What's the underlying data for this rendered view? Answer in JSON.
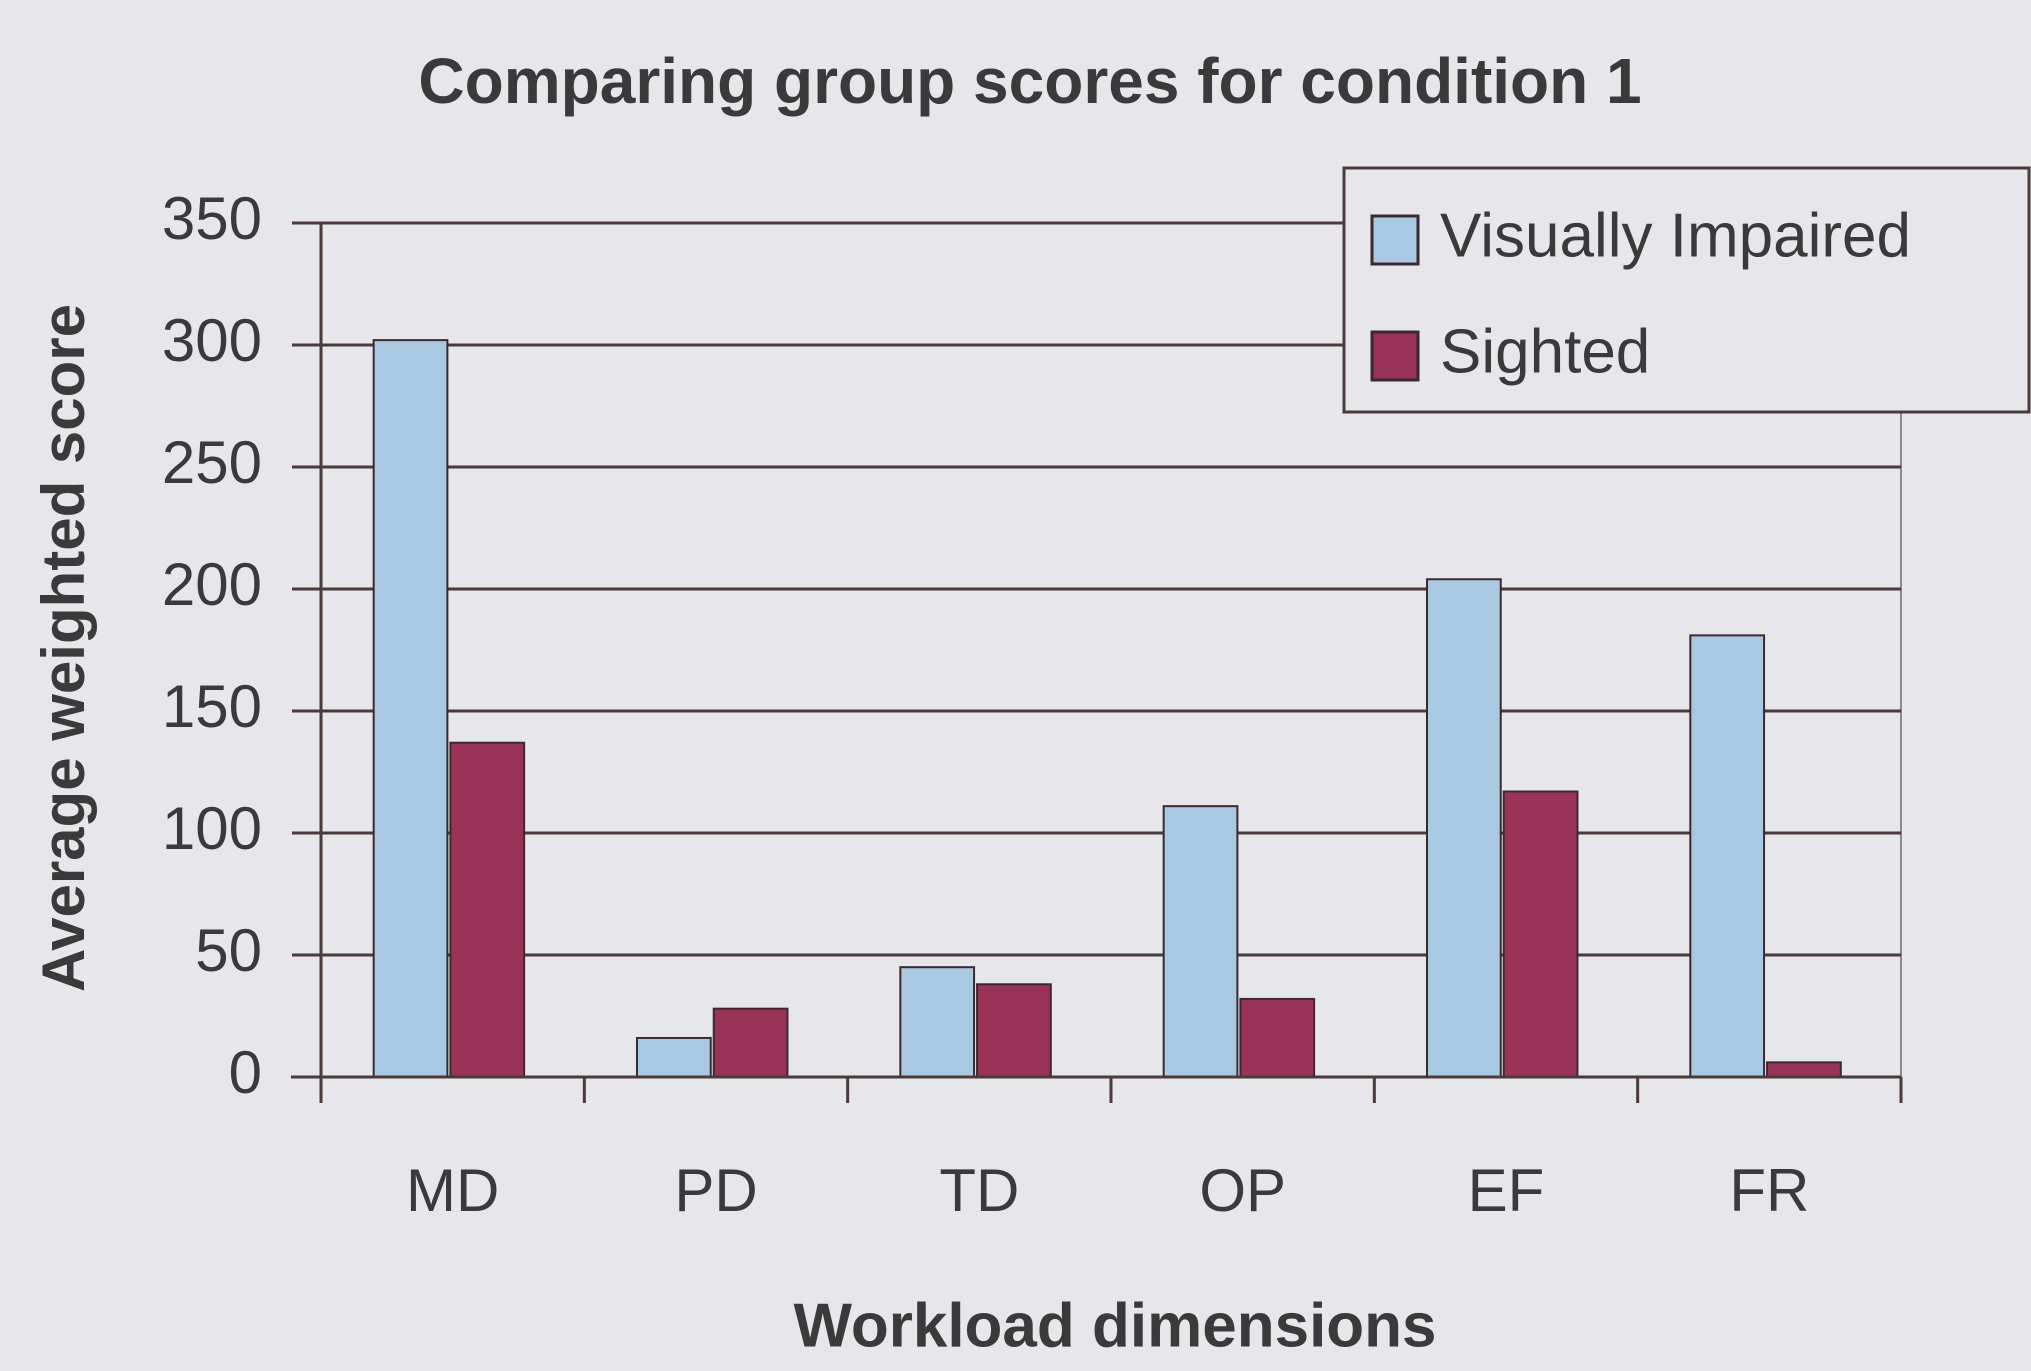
{
  "chart_data": {
    "type": "bar",
    "title": "Comparing group scores for condition 1",
    "x_label": "Workload dimensions",
    "y_label": "Average weighted score",
    "categories": [
      "MD",
      "PD",
      "TD",
      "OP",
      "EF",
      "FR"
    ],
    "series": [
      {
        "name": "Visually Impaired",
        "color": "#a9c9e2",
        "values": [
          302,
          16,
          45,
          111,
          204,
          181
        ]
      },
      {
        "name": "Sighted",
        "color": "#993358",
        "values": [
          137,
          28,
          38,
          32,
          117,
          6
        ]
      }
    ],
    "ylim": [
      0,
      350
    ],
    "yticks": [
      0,
      50,
      100,
      150,
      200,
      250,
      300,
      350
    ],
    "grid": true,
    "legend": "upper right"
  }
}
